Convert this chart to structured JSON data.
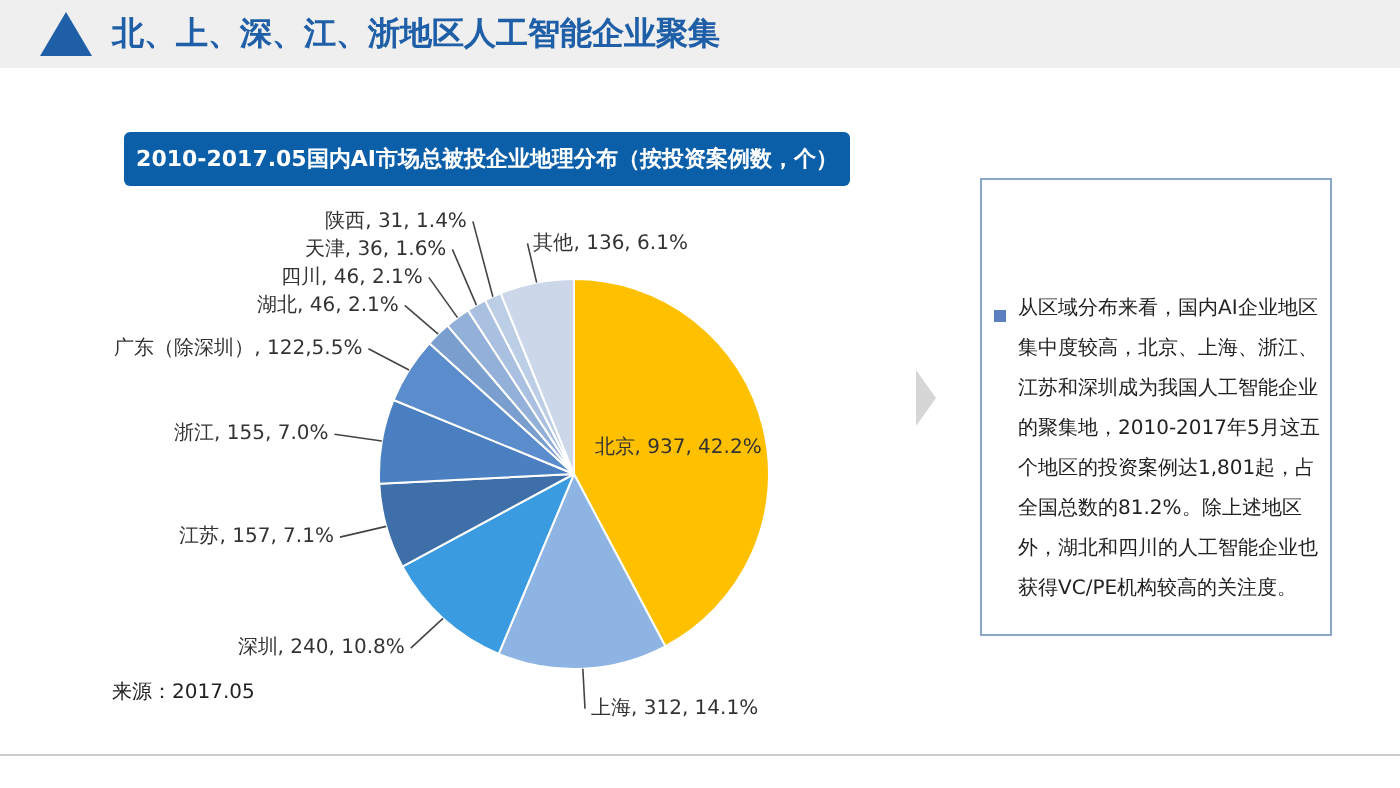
{
  "chart_data": {
    "type": "pie",
    "title": "北、上、深、江、浙地区人工智能企业聚集",
    "subtitle": "2010-2017.05国内AI市场总被投企业地理分布（按投资案例数，个）",
    "categories": [
      "北京",
      "上海",
      "深圳",
      "江苏",
      "浙江",
      "广东（除深圳）",
      "湖北",
      "四川",
      "天津",
      "陕西",
      "其他"
    ],
    "values": [
      937,
      312,
      240,
      157,
      155,
      122,
      46,
      46,
      36,
      31,
      136
    ],
    "colors": [
      "#ffc000",
      "#8eb4e3",
      "#3a9be0",
      "#3f6fa8",
      "#4a7fc1",
      "#5b8ccc",
      "#7a9fcf",
      "#93b0d8",
      "#a9c0e0",
      "#bccde6",
      "#ccd7ea"
    ],
    "value_labels": [
      "937, 42.2%",
      "312, 14.1%",
      "240, 10.8%",
      "157, 7.1%",
      "155, 7.0%",
      "122,5.5%",
      "46, 2.1%",
      "46, 2.1%",
      "36, 1.6%",
      "31, 1.4%",
      "136, 6.1%"
    ],
    "annotations": [
      "从区域分布来看，国内AI企业地区集中度较高，北京、上海、浙江、江苏和深圳成为我国人工智能企业的聚集地，2010-2017年5月这五个地区的投资案例达1,801起，占全国总数的81.2%。除上述地区外，湖北和四川的人工智能企业也获得VC/PE机构较高的关注度。",
      "来源：2017.05"
    ]
  }
}
